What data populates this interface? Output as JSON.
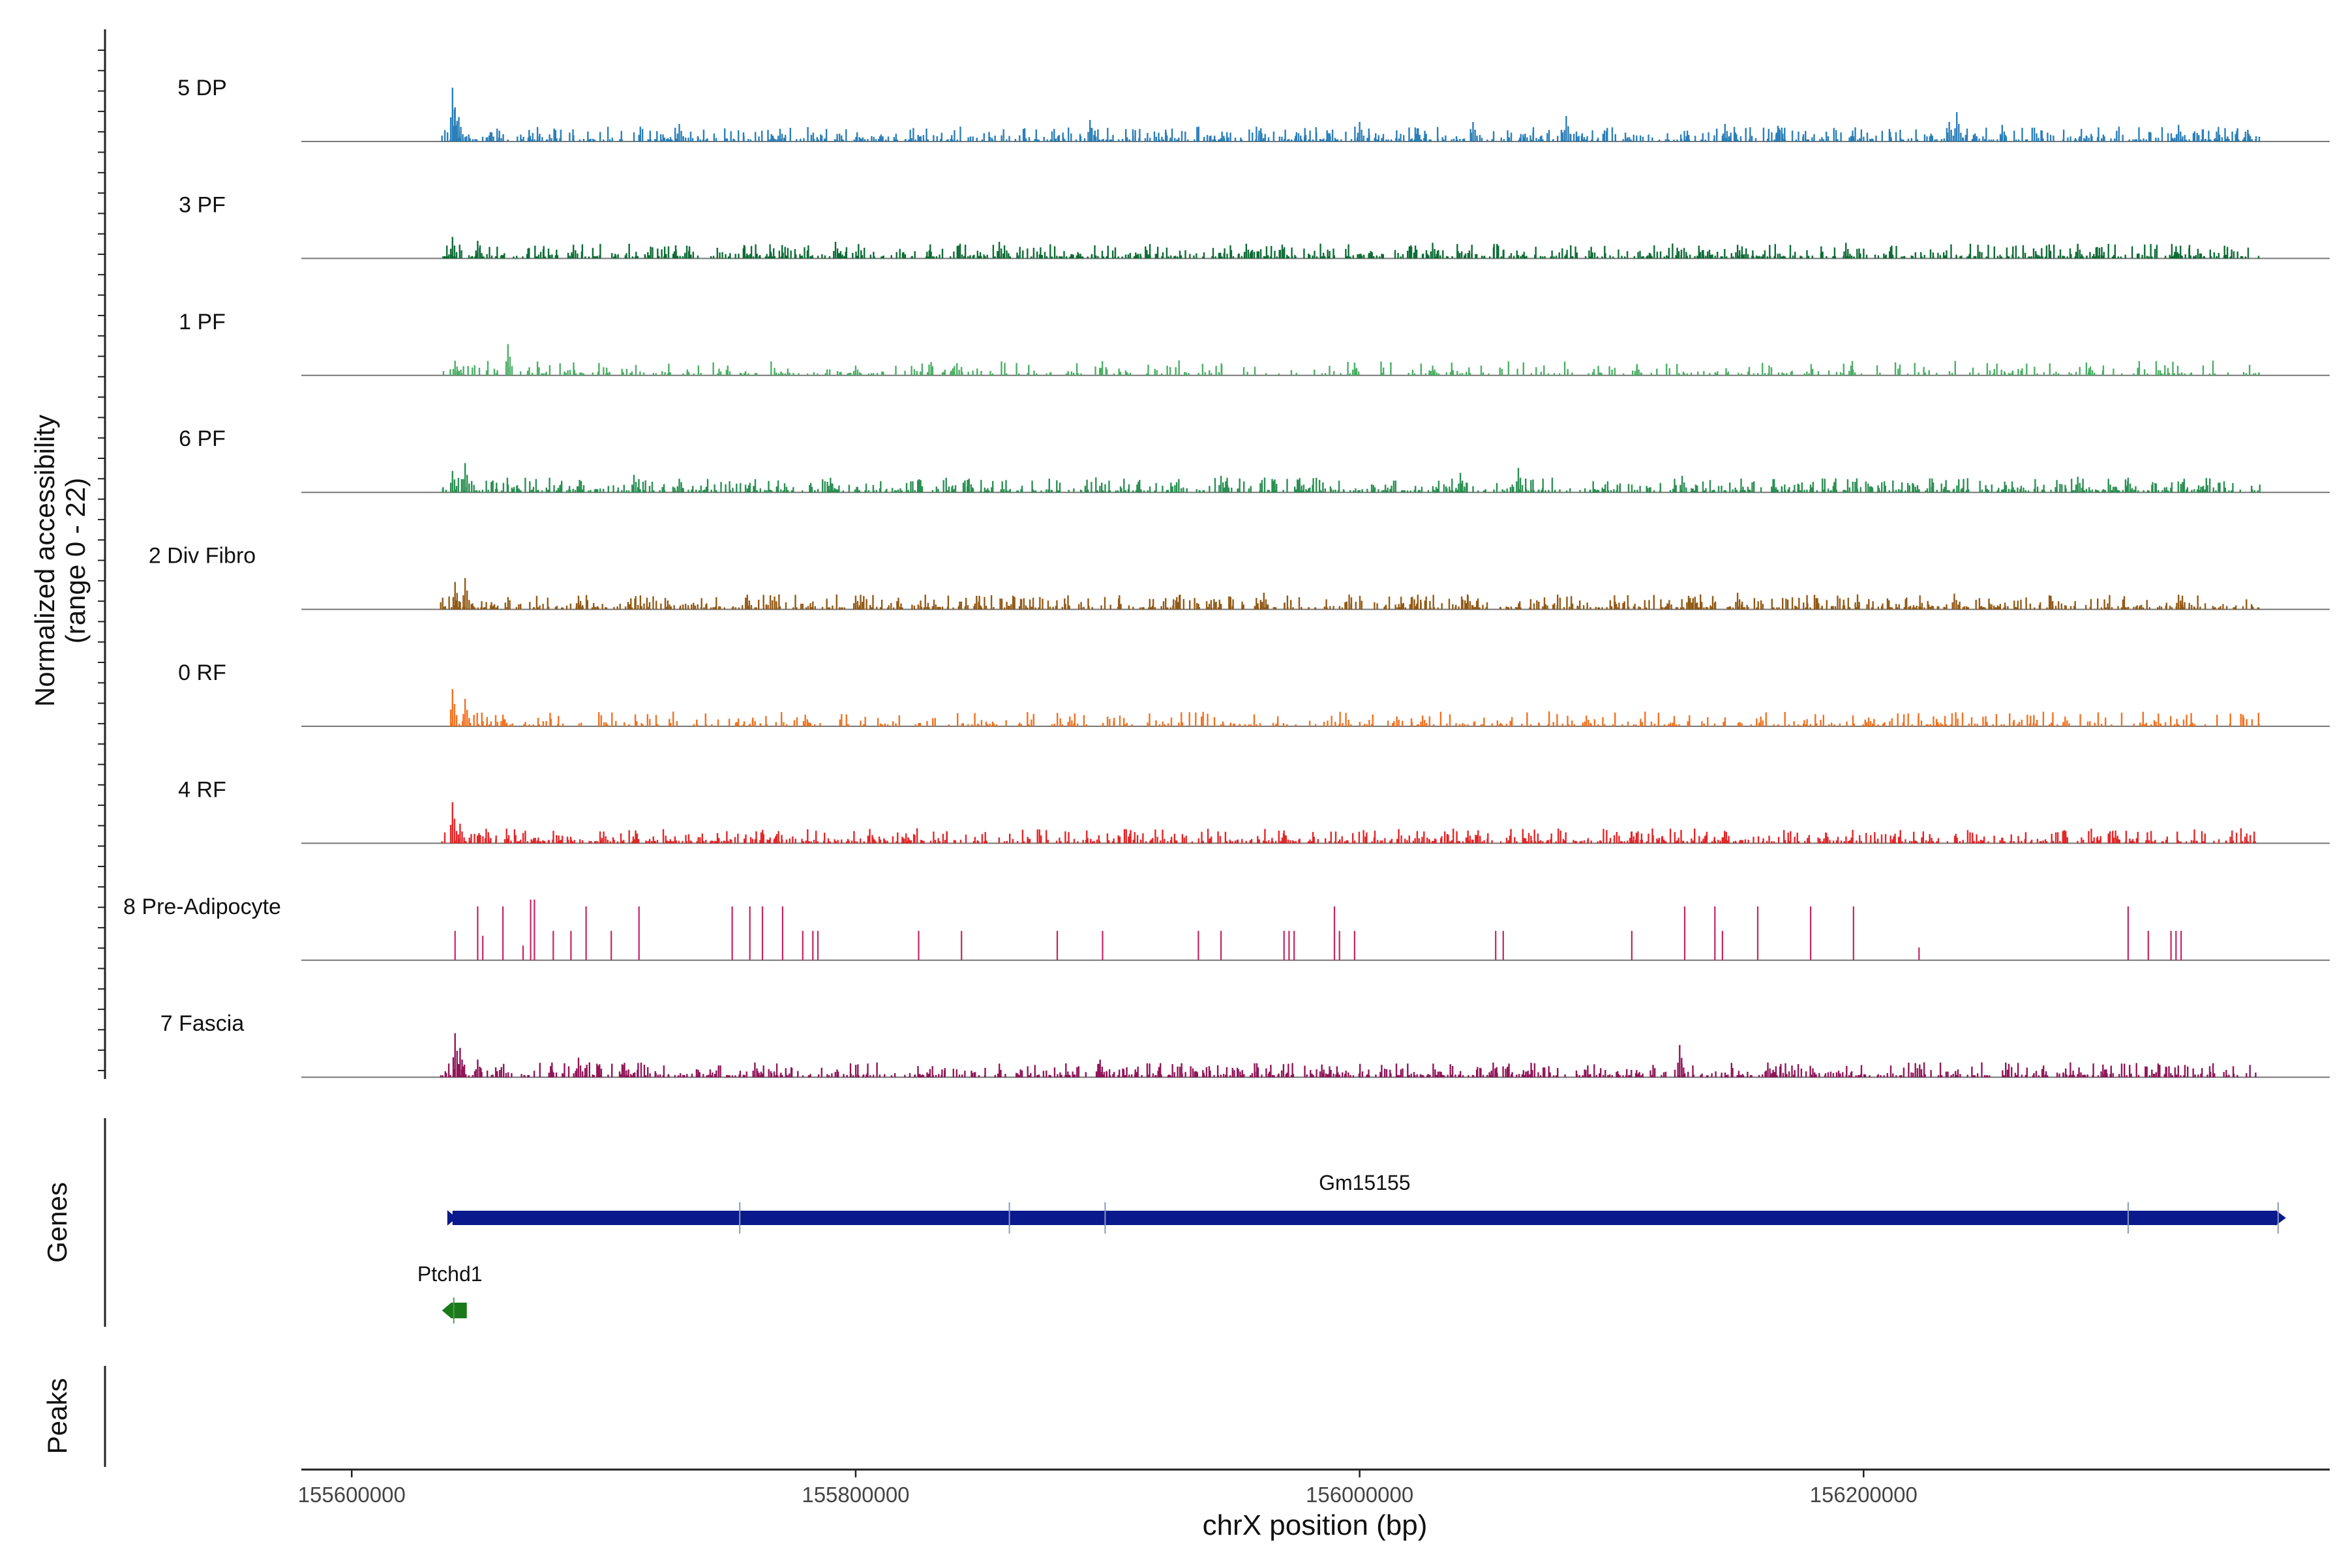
{
  "chart_data": {
    "type": "genome-coverage-tracks",
    "coverage": {
      "ylabel_line1": "Normalized accessibility",
      "ylabel_line2": "(range 0 - 22)",
      "range": [
        0,
        22
      ],
      "tracks": [
        {
          "name": "5 DP",
          "color": "#1f78b4",
          "style": "dense",
          "peaks": [
            [
              155640000,
              0.55
            ],
            [
              155641000,
              0.35
            ],
            [
              155642500,
              0.25
            ],
            [
              155730000,
              0.18
            ],
            [
              155770000,
              0.13
            ],
            [
              155893000,
              0.22
            ],
            [
              156000000,
              0.2
            ],
            [
              156045000,
              0.2
            ],
            [
              156082000,
              0.26
            ],
            [
              156145000,
              0.18
            ],
            [
              156166000,
              0.16
            ],
            [
              156237000,
              0.3
            ],
            [
              156234000,
              0.2
            ],
            [
              156255000,
              0.17
            ],
            [
              156325000,
              0.17
            ]
          ]
        },
        {
          "name": "3 PF",
          "color": "#00642b",
          "style": "dense",
          "peaks": [
            [
              155640000,
              0.22
            ],
            [
              155650000,
              0.18
            ],
            [
              155688000,
              0.14
            ],
            [
              155733000,
              0.13
            ],
            [
              155792000,
              0.17
            ],
            [
              155857000,
              0.17
            ],
            [
              155955000,
              0.15
            ],
            [
              156029000,
              0.16
            ],
            [
              156150000,
              0.14
            ],
            [
              156193000,
              0.16
            ],
            [
              156285000,
              0.15
            ]
          ]
        },
        {
          "name": "1 PF",
          "color": "#41ab5d",
          "style": "sparse",
          "peaks": [
            [
              155641000,
              0.15
            ],
            [
              155662000,
              0.32
            ],
            [
              155800000,
              0.1
            ],
            [
              155998000,
              0.13
            ],
            [
              156029000,
              0.1
            ],
            [
              156110000,
              0.1
            ],
            [
              156195000,
              0.1
            ],
            [
              156290000,
              0.09
            ]
          ]
        },
        {
          "name": "6 PF",
          "color": "#1f8a4a",
          "style": "dense",
          "peaks": [
            [
              155640000,
              0.22
            ],
            [
              155645000,
              0.3
            ],
            [
              155712000,
              0.18
            ],
            [
              155730000,
              0.14
            ],
            [
              155790000,
              0.15
            ],
            [
              155845000,
              0.14
            ],
            [
              155945000,
              0.17
            ],
            [
              156040000,
              0.2
            ],
            [
              156063000,
              0.25
            ],
            [
              156128000,
              0.17
            ],
            [
              156285000,
              0.16
            ],
            [
              156305000,
              0.15
            ]
          ]
        },
        {
          "name": "2 Div Fibro",
          "color": "#8c510a",
          "style": "dense",
          "peaks": [
            [
              155641000,
              0.28
            ],
            [
              155645000,
              0.32
            ],
            [
              155690000,
              0.14
            ],
            [
              155757000,
              0.15
            ],
            [
              155800000,
              0.14
            ],
            [
              155848000,
              0.13
            ],
            [
              155962000,
              0.17
            ],
            [
              156043000,
              0.14
            ],
            [
              156150000,
              0.17
            ],
            [
              156236000,
              0.16
            ],
            [
              156325000,
              0.15
            ]
          ]
        },
        {
          "name": "0 RF",
          "color": "#f16913",
          "style": "sparse",
          "peaks": [
            [
              155640000,
              0.38
            ],
            [
              155645000,
              0.28
            ],
            [
              155660000,
              0.12
            ],
            [
              155780000,
              0.12
            ],
            [
              155885000,
              0.1
            ],
            [
              156025000,
              0.11
            ],
            [
              156090000,
              0.11
            ],
            [
              156202000,
              0.09
            ],
            [
              156280000,
              0.1
            ]
          ]
        },
        {
          "name": "4 RF",
          "color": "#e31a1c",
          "style": "dense",
          "peaks": [
            [
              155640000,
              0.42
            ],
            [
              155643000,
              0.2
            ],
            [
              155700000,
              0.12
            ],
            [
              155820000,
              0.1
            ],
            [
              155970000,
              0.13
            ],
            [
              156043000,
              0.13
            ],
            [
              156108000,
              0.12
            ],
            [
              156185000,
              0.11
            ],
            [
              156300000,
              0.13
            ]
          ]
        },
        {
          "name": "8 Pre-Adipocyte",
          "color": "#c2185b",
          "style": "spikes",
          "peaks": [
            [
              155641000,
              0.3
            ],
            [
              155650000,
              0.55
            ],
            [
              155652000,
              0.25
            ],
            [
              155660000,
              0.55
            ],
            [
              155668000,
              0.15
            ],
            [
              155671000,
              0.62
            ],
            [
              155672500,
              0.62
            ],
            [
              155680000,
              0.3
            ],
            [
              155687000,
              0.3
            ],
            [
              155693000,
              0.55
            ],
            [
              155703000,
              0.3
            ],
            [
              155714000,
              0.55
            ],
            [
              155751000,
              0.55
            ],
            [
              155758000,
              0.55
            ],
            [
              155763000,
              0.55
            ],
            [
              155771000,
              0.55
            ],
            [
              155779000,
              0.3
            ],
            [
              155783000,
              0.3
            ],
            [
              155785000,
              0.3
            ],
            [
              155825000,
              0.3
            ],
            [
              155842000,
              0.3
            ],
            [
              155880000,
              0.3
            ],
            [
              155898000,
              0.3
            ],
            [
              155936000,
              0.3
            ],
            [
              155945000,
              0.3
            ],
            [
              155970000,
              0.3
            ],
            [
              155972000,
              0.3
            ],
            [
              155974000,
              0.3
            ],
            [
              155990000,
              0.55
            ],
            [
              155992000,
              0.3
            ],
            [
              155998000,
              0.3
            ],
            [
              156054000,
              0.3
            ],
            [
              156057000,
              0.3
            ],
            [
              156108000,
              0.3
            ],
            [
              156129000,
              0.55
            ],
            [
              156141000,
              0.55
            ],
            [
              156144000,
              0.3
            ],
            [
              156158000,
              0.55
            ],
            [
              156179000,
              0.55
            ],
            [
              156196000,
              0.55
            ],
            [
              156222000,
              0.13
            ],
            [
              156305000,
              0.55
            ],
            [
              156313000,
              0.3
            ],
            [
              156322000,
              0.3
            ],
            [
              156324000,
              0.3
            ],
            [
              156326000,
              0.3
            ]
          ]
        },
        {
          "name": "7 Fascia",
          "color": "#8b0a50",
          "style": "dense",
          "peaks": [
            [
              155641000,
              0.45
            ],
            [
              155643000,
              0.3
            ],
            [
              155650000,
              0.18
            ],
            [
              155690000,
              0.2
            ],
            [
              155760000,
              0.15
            ],
            [
              155897000,
              0.18
            ],
            [
              155985000,
              0.13
            ],
            [
              156053000,
              0.15
            ],
            [
              156127000,
              0.33
            ],
            [
              156162000,
              0.15
            ],
            [
              156295000,
              0.13
            ]
          ]
        }
      ]
    },
    "genes": {
      "label": "Genes",
      "items": [
        {
          "name": "Gm15155",
          "start": 155640000,
          "end": 156364000,
          "strand": "+",
          "color": "#0a1a8c",
          "ticks": [
            155754000,
            155861000,
            155899000,
            156305000
          ]
        },
        {
          "name": "Ptchd1",
          "start": 155638000,
          "end": 155643000,
          "strand": "-",
          "color": "#1a7a1a"
        }
      ]
    },
    "peaks": {
      "label": "Peaks",
      "items": []
    },
    "x_axis": {
      "label": "chrX position (bp)",
      "range": [
        155580000,
        156385000
      ],
      "ticks": [
        155600000,
        155800000,
        156000000,
        156200000
      ],
      "tick_labels": [
        "155600000",
        "155800000",
        "156000000",
        "156200000"
      ]
    }
  }
}
